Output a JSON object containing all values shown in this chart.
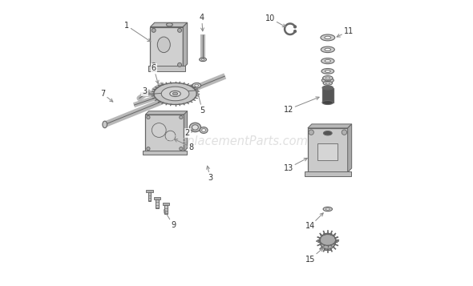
{
  "bg_color": "#ffffff",
  "part_color": "#b8b8b8",
  "line_color": "#666666",
  "dark_color": "#444444",
  "label_color": "#333333",
  "watermark_color": "#cccccc",
  "watermark_text": "eReplacementParts.com",
  "figsize": [
    5.9,
    3.57
  ],
  "dpi": 100,
  "labels": [
    [
      1,
      0.115,
      0.915,
      0.215,
      0.845
    ],
    [
      2,
      0.325,
      0.535,
      0.355,
      0.555
    ],
    [
      2,
      0.325,
      0.515,
      0.34,
      0.52
    ],
    [
      3,
      0.175,
      0.685,
      0.205,
      0.68
    ],
    [
      3,
      0.405,
      0.38,
      0.42,
      0.43
    ],
    [
      4,
      0.375,
      0.94,
      0.38,
      0.87
    ],
    [
      5,
      0.375,
      0.62,
      0.35,
      0.635
    ],
    [
      6,
      0.21,
      0.76,
      0.235,
      0.745
    ],
    [
      7,
      0.03,
      0.67,
      0.075,
      0.64
    ],
    [
      8,
      0.34,
      0.49,
      0.27,
      0.51
    ],
    [
      9,
      0.275,
      0.215,
      0.215,
      0.27
    ],
    [
      10,
      0.62,
      0.94,
      0.685,
      0.9
    ],
    [
      11,
      0.895,
      0.895,
      0.84,
      0.865
    ],
    [
      12,
      0.68,
      0.62,
      0.775,
      0.66
    ],
    [
      13,
      0.68,
      0.415,
      0.76,
      0.455
    ],
    [
      14,
      0.76,
      0.21,
      0.815,
      0.25
    ],
    [
      15,
      0.755,
      0.095,
      0.815,
      0.145
    ]
  ]
}
